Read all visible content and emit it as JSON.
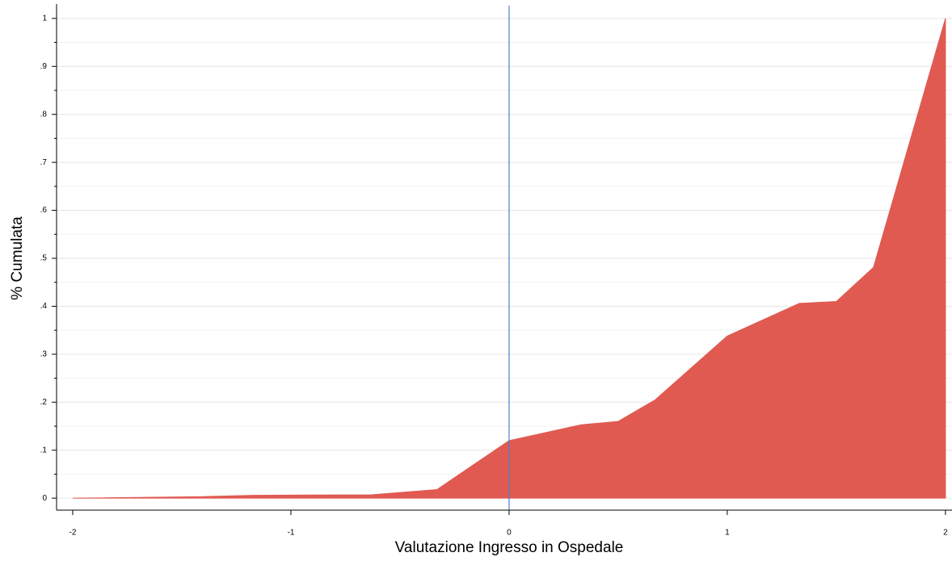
{
  "chart_data": {
    "type": "area",
    "xlabel": "Valutazione Ingresso in Ospedale",
    "ylabel": "% Cumulata",
    "x": [
      -2,
      -1.42,
      -1.17,
      -0.63,
      -0.33,
      0,
      0.33,
      0.5,
      0.67,
      1,
      1.33,
      1.5,
      1.67,
      2
    ],
    "values": [
      0,
      0.003,
      0.006,
      0.007,
      0.018,
      0.12,
      0.153,
      0.16,
      0.205,
      0.338,
      0.406,
      0.41,
      0.481,
      1
    ],
    "color": "#e05a52",
    "xlim": [
      -2.074,
      2.03
    ],
    "ylim": [
      -0.025,
      1.03
    ],
    "xticks": [
      -2,
      -1,
      0,
      1,
      2
    ],
    "yticks": [
      0,
      {
        "value": 0.1,
        "label": ".1"
      },
      {
        "value": 0.2,
        "label": ".2"
      },
      {
        "value": 0.3,
        "label": ".3"
      },
      {
        "value": 0.4,
        "label": ".4"
      },
      {
        "value": 0.5,
        "label": ".5"
      },
      {
        "value": 0.6,
        "label": ".6"
      },
      {
        "value": 0.7,
        "label": ".7"
      },
      {
        "value": 0.8,
        "label": ".8"
      },
      {
        "value": 0.9,
        "label": ".9"
      },
      1
    ],
    "y_minor_ticks": [
      0.05,
      0.15,
      0.25,
      0.35,
      0.45,
      0.55,
      0.65,
      0.75,
      0.85,
      0.95
    ],
    "grid": true,
    "vline": 0,
    "vline_color": "#4a7fd0"
  }
}
